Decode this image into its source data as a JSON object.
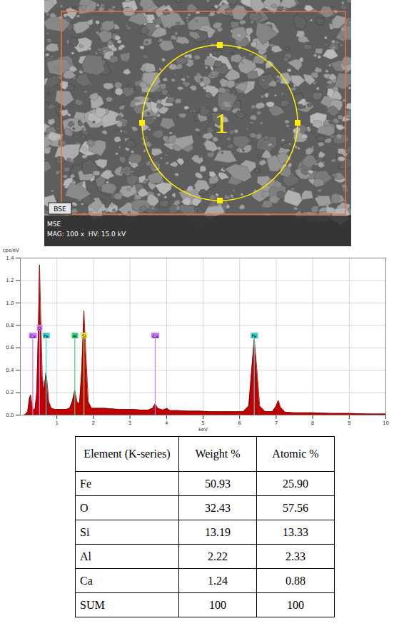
{
  "image": {
    "marker_label": "1",
    "detector": "BSE",
    "bar_lines": [
      "MSE",
      "MAG: 100 x  HV: 15.0 kV"
    ]
  },
  "chart_data": {
    "type": "area",
    "y_label": "cps/eV",
    "x_label": "keV",
    "color": "#c00000",
    "x": [
      0.1,
      0.15,
      0.2,
      0.25,
      0.28,
      0.31,
      0.35,
      0.4,
      0.45,
      0.5,
      0.525,
      0.55,
      0.6,
      0.65,
      0.7,
      0.73,
      0.78,
      0.85,
      0.95,
      1.05,
      1.15,
      1.25,
      1.35,
      1.42,
      1.49,
      1.55,
      1.62,
      1.68,
      1.74,
      1.8,
      1.86,
      1.95,
      2.1,
      2.3,
      2.5,
      2.7,
      2.9,
      3.1,
      3.3,
      3.5,
      3.62,
      3.69,
      3.76,
      3.9,
      4.01,
      4.1,
      4.3,
      4.6,
      4.9,
      5.2,
      5.5,
      5.8,
      6.1,
      6.25,
      6.33,
      6.4,
      6.47,
      6.55,
      6.7,
      6.9,
      7.0,
      7.06,
      7.12,
      7.25,
      7.5,
      8.0,
      8.5,
      9.0,
      9.5,
      10.0
    ],
    "values": [
      0.0,
      0.01,
      0.03,
      0.15,
      0.18,
      0.12,
      0.05,
      0.05,
      0.2,
      0.85,
      1.34,
      1.0,
      0.35,
      0.22,
      0.38,
      0.3,
      0.12,
      0.06,
      0.05,
      0.05,
      0.05,
      0.05,
      0.06,
      0.12,
      0.22,
      0.12,
      0.1,
      0.4,
      0.93,
      0.5,
      0.12,
      0.06,
      0.06,
      0.06,
      0.055,
      0.05,
      0.05,
      0.05,
      0.045,
      0.045,
      0.06,
      0.1,
      0.06,
      0.045,
      0.06,
      0.04,
      0.04,
      0.035,
      0.035,
      0.03,
      0.03,
      0.03,
      0.03,
      0.08,
      0.4,
      0.68,
      0.42,
      0.08,
      0.03,
      0.03,
      0.08,
      0.13,
      0.07,
      0.025,
      0.02,
      0.02,
      0.015,
      0.015,
      0.01,
      0.01
    ],
    "xlim": [
      0,
      10
    ],
    "xticks": [
      1,
      2,
      3,
      4,
      5,
      6,
      7,
      8,
      9,
      10
    ],
    "ylim": [
      0,
      1.4
    ],
    "yticks": [
      {
        "value": 0,
        "label": "0.0"
      },
      0.2,
      0.4,
      0.6,
      0.8,
      {
        "value": 1,
        "label": "1.0"
      },
      1.2,
      1.4
    ],
    "grid": true,
    "annotations": [
      {
        "label": "Ca",
        "x": 0.34,
        "y": 0.68,
        "color": "#c77dff"
      },
      {
        "label": "O",
        "x": 0.525,
        "y": 0.75,
        "color": "#d67ae8"
      },
      {
        "label": "Fe",
        "x": 0.705,
        "y": 0.68,
        "color": "#40d0d0"
      },
      {
        "label": "Al",
        "x": 1.49,
        "y": 0.68,
        "color": "#40d080"
      },
      {
        "label": "Si",
        "x": 1.74,
        "y": 0.68,
        "color": "#e8e040"
      },
      {
        "label": "Ca",
        "x": 3.69,
        "y": 0.68,
        "color": "#c77dff"
      },
      {
        "label": "Fe",
        "x": 6.4,
        "y": 0.68,
        "color": "#40d0d0"
      }
    ]
  },
  "table": {
    "header": [
      "Element (K-series)",
      "Weight %",
      "Atomic %"
    ],
    "rows": [
      [
        "Fe",
        "50.93",
        "25.90"
      ],
      [
        "O",
        "32.43",
        "57.56"
      ],
      [
        "Si",
        "13.19",
        "13.33"
      ],
      [
        "Al",
        "2.22",
        "2.33"
      ],
      [
        "Ca",
        "1.24",
        "0.88"
      ],
      [
        "SUM",
        "100",
        "100"
      ]
    ]
  }
}
